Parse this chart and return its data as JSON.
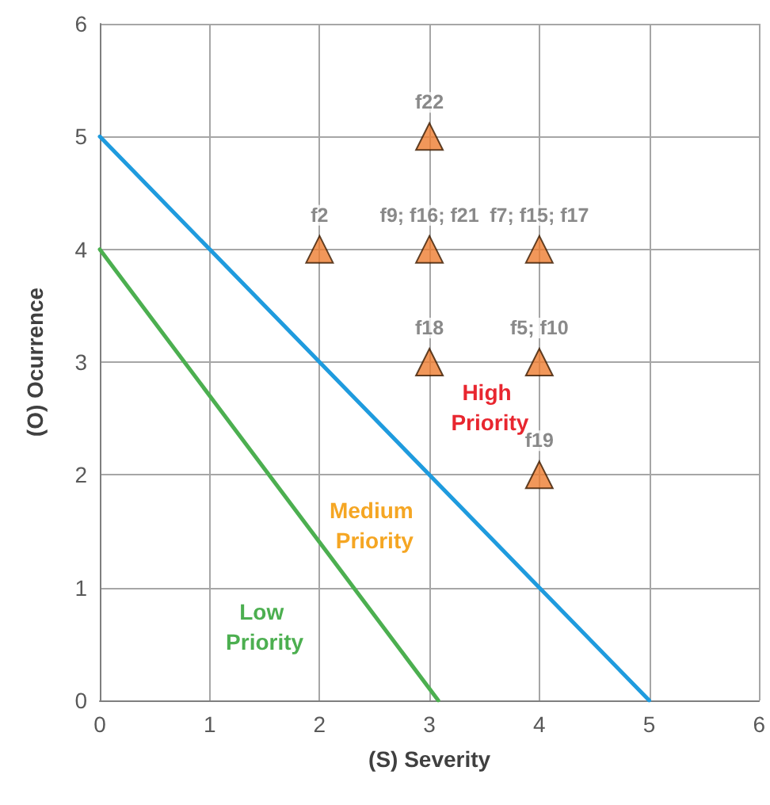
{
  "chart_data": {
    "type": "scatter",
    "xlabel": "(S) Severity",
    "ylabel": "(O) Ocurrence",
    "xlim": [
      0,
      6
    ],
    "xticks": [
      0,
      1,
      2,
      3,
      4,
      5,
      6
    ],
    "ylim": [
      0,
      6
    ],
    "yticks": [
      0,
      1,
      2,
      3,
      4,
      5,
      6
    ],
    "grid": true,
    "series": [
      {
        "type": "line",
        "color": "#4caf50",
        "x": [
          0,
          3.08
        ],
        "values": [
          4,
          0
        ],
        "marker": "none",
        "line_style": "solid"
      },
      {
        "type": "line",
        "color": "#1f9bde",
        "x": [
          0,
          5
        ],
        "values": [
          5,
          0
        ],
        "marker": "none",
        "line_style": "solid"
      },
      {
        "color": "#ed7d31",
        "marker": "triangle",
        "x": [
          2,
          3,
          3,
          4,
          3,
          4,
          4
        ],
        "values": [
          4,
          5,
          4,
          4,
          3,
          3,
          2
        ],
        "value_labels": [
          "f2",
          "f22",
          "f9; f16; f21",
          "f7; f15; f17",
          "f18",
          "f5; f10",
          "f19"
        ]
      }
    ],
    "annotations": [
      "High Priority",
      "Medium Priority",
      "Low Priority"
    ]
  }
}
